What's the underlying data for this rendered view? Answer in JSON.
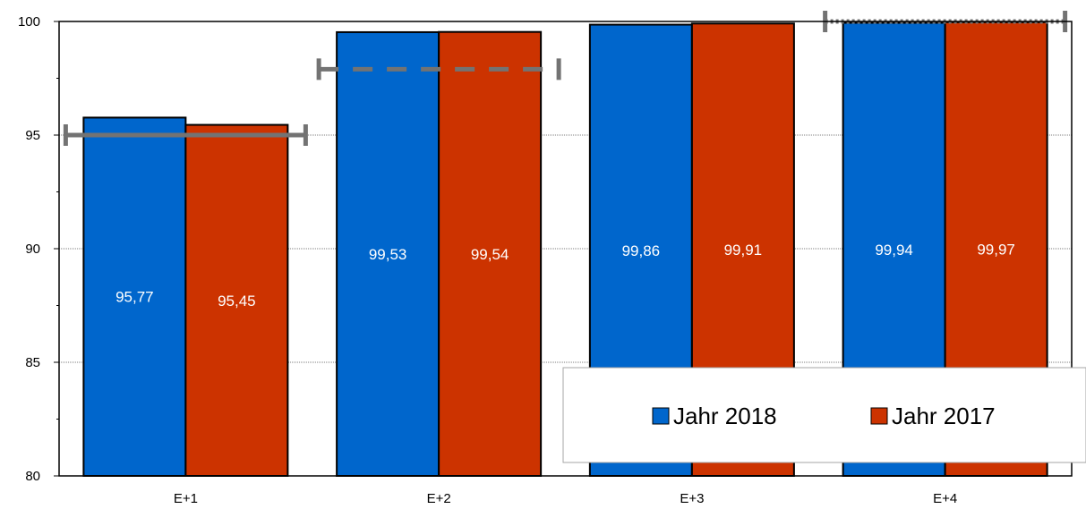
{
  "chart_data": {
    "type": "bar",
    "categories": [
      "E+1",
      "E+2",
      "E+3",
      "E+4"
    ],
    "series": [
      {
        "name": "Jahr 2018",
        "values": [
          95.77,
          99.53,
          99.86,
          99.94
        ],
        "labels": [
          "95,77",
          "99,53",
          "99,86",
          "99,94"
        ],
        "color": "#0066CC"
      },
      {
        "name": "Jahr 2017",
        "values": [
          95.45,
          99.54,
          99.91,
          99.97
        ],
        "labels": [
          "95,45",
          "99,54",
          "99,91",
          "99,97"
        ],
        "color": "#CC3300"
      }
    ],
    "targets": [
      {
        "category": "E+1",
        "value": 95.0,
        "style": "solid"
      },
      {
        "category": "E+2",
        "value": 97.9,
        "style": "dashed"
      },
      {
        "category": "E+4",
        "value": 100.0,
        "style": "dotted"
      }
    ],
    "target_color": "#737373",
    "ylim": [
      80,
      100
    ],
    "yticks": [
      80,
      85,
      90,
      95,
      100
    ],
    "grid": true,
    "legend_position": "bottom-right",
    "title": "",
    "xlabel": "",
    "ylabel": ""
  }
}
